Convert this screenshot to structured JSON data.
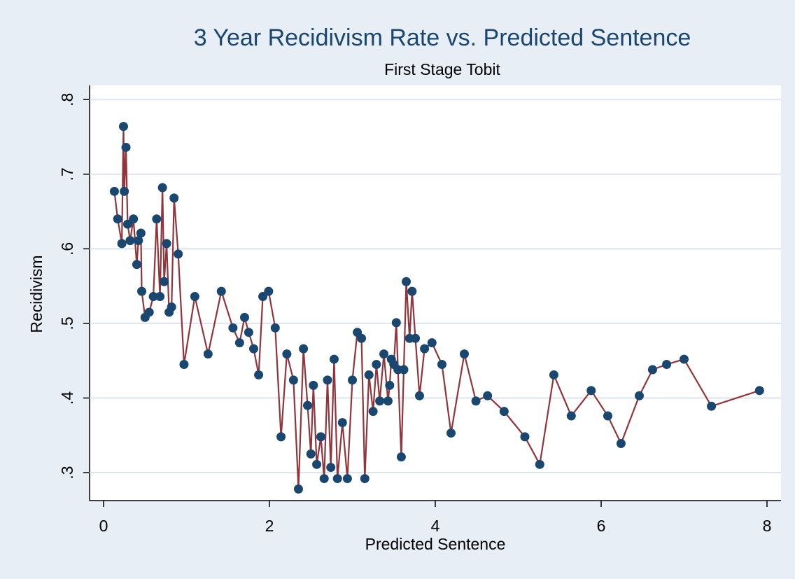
{
  "chart_data": {
    "type": "line",
    "title": "3 Year Recidivism Rate vs. Predicted Sentence",
    "subtitle": "First Stage Tobit",
    "x_label": "Predicted Sentence",
    "y_label": "Recidivism",
    "x": [
      0.13,
      0.17,
      0.22,
      0.24,
      0.25,
      0.27,
      0.29,
      0.32,
      0.36,
      0.4,
      0.42,
      0.45,
      0.46,
      0.5,
      0.55,
      0.6,
      0.64,
      0.68,
      0.71,
      0.73,
      0.76,
      0.79,
      0.82,
      0.85,
      0.9,
      0.97,
      1.1,
      1.26,
      1.42,
      1.56,
      1.64,
      1.7,
      1.75,
      1.81,
      1.87,
      1.92,
      1.99,
      2.07,
      2.14,
      2.21,
      2.29,
      2.35,
      2.41,
      2.46,
      2.5,
      2.53,
      2.57,
      2.62,
      2.66,
      2.7,
      2.74,
      2.78,
      2.82,
      2.88,
      2.94,
      3.0,
      3.06,
      3.11,
      3.15,
      3.2,
      3.25,
      3.29,
      3.33,
      3.38,
      3.43,
      3.45,
      3.47,
      3.5,
      3.53,
      3.55,
      3.59,
      3.62,
      3.65,
      3.69,
      3.72,
      3.76,
      3.81,
      3.87,
      3.96,
      4.08,
      4.19,
      4.35,
      4.49,
      4.63,
      4.83,
      5.08,
      5.26,
      5.43,
      5.64,
      5.88,
      6.08,
      6.24,
      6.46,
      6.62,
      6.79,
      7.0,
      7.33,
      7.91
    ],
    "series": [
      {
        "name": "Recidivism",
        "color": "#90353b",
        "marker_color": "#1a476f",
        "values": [
          0.677,
          0.64,
          0.607,
          0.764,
          0.677,
          0.736,
          0.633,
          0.611,
          0.64,
          0.579,
          0.611,
          0.621,
          0.543,
          0.508,
          0.515,
          0.536,
          0.64,
          0.536,
          0.682,
          0.556,
          0.607,
          0.515,
          0.522,
          0.668,
          0.593,
          0.445,
          0.536,
          0.459,
          0.543,
          0.494,
          0.474,
          0.508,
          0.488,
          0.466,
          0.431,
          0.536,
          0.543,
          0.494,
          0.348,
          0.459,
          0.424,
          0.278,
          0.466,
          0.39,
          0.325,
          0.417,
          0.311,
          0.348,
          0.292,
          0.424,
          0.307,
          0.452,
          0.292,
          0.367,
          0.292,
          0.424,
          0.488,
          0.48,
          0.292,
          0.431,
          0.382,
          0.445,
          0.396,
          0.459,
          0.396,
          0.417,
          0.452,
          0.445,
          0.501,
          0.438,
          0.321,
          0.438,
          0.556,
          0.48,
          0.543,
          0.48,
          0.403,
          0.466,
          0.474,
          0.445,
          0.353,
          0.459,
          0.396,
          0.403,
          0.382,
          0.348,
          0.311,
          0.431,
          0.376,
          0.41,
          0.376,
          0.339,
          0.403,
          0.438,
          0.445,
          0.452,
          0.389,
          0.41
        ]
      }
    ],
    "xlim": [
      -0.169,
      8.169
    ],
    "xticks": [
      0,
      2,
      4,
      6,
      8
    ],
    "ylim": [
      0.2625,
      0.819
    ],
    "yticks": [
      {
        "value": 0.3,
        "label": ".3"
      },
      {
        "value": 0.4,
        "label": ".4"
      },
      {
        "value": 0.5,
        "label": ".5"
      },
      {
        "value": 0.6,
        "label": ".6"
      },
      {
        "value": 0.7,
        "label": ".7"
      },
      {
        "value": 0.8,
        "label": ".8"
      }
    ],
    "grid": true
  }
}
